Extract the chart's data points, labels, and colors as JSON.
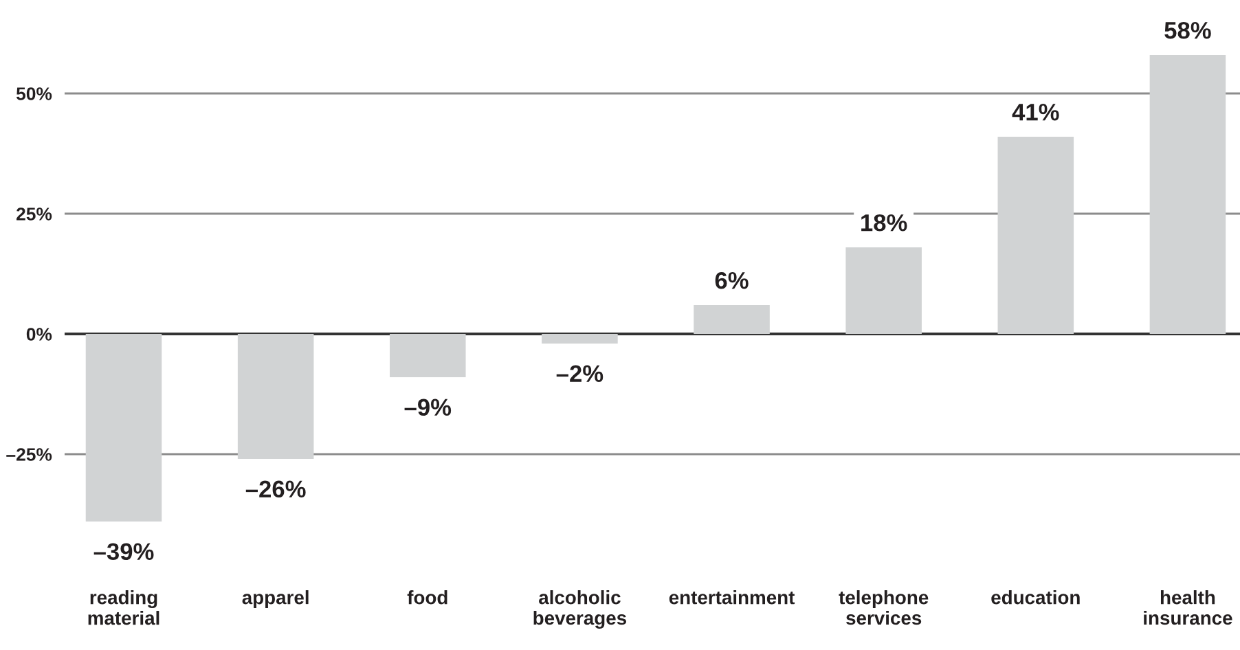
{
  "chart_data": {
    "type": "bar",
    "categories": [
      "reading\nmaterial",
      "apparel",
      "food",
      "alcoholic\nbeverages",
      "entertainment",
      "telephone\nservices",
      "education",
      "health\ninsurance"
    ],
    "values": [
      -39,
      -26,
      -9,
      -2,
      6,
      18,
      41,
      58
    ],
    "value_labels": [
      "–39%",
      "–26%",
      "–9%",
      "–2%",
      "6%",
      "18%",
      "41%",
      "58%"
    ],
    "color": "#d1d3d4",
    "ylim": [
      -39,
      58
    ],
    "yticks": [
      {
        "value": -25,
        "label": "–25%"
      },
      {
        "value": 0,
        "label": "0%"
      },
      {
        "value": 25,
        "label": "25%"
      },
      {
        "value": 50,
        "label": "50%"
      }
    ],
    "grid": "y"
  }
}
